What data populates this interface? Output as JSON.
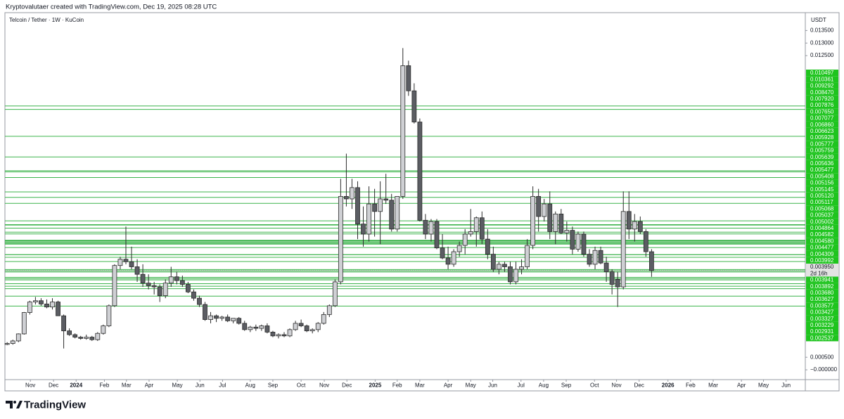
{
  "header": {
    "credit": "Kryptovalutaer created with TradingView.com, Dec 19, 2025 08:28 UTC"
  },
  "chart_data": {
    "type": "candlestick",
    "title": "Telcoin / Tether · 1W · KuCoin",
    "y_unit": "USDT",
    "open": [
      0.00101,
      0.00105,
      0.00115,
      0.00143,
      0.00228,
      0.0027,
      0.00275,
      0.00262,
      0.0025,
      0.0027,
      0.00215,
      0.00155,
      0.0014,
      0.0013,
      0.00125,
      0.0013,
      0.0012,
      0.00145,
      0.00175,
      0.00255,
      0.00415,
      0.0044,
      0.0043,
      0.0041,
      0.0038,
      0.00345,
      0.00335,
      0.0033,
      0.00295,
      0.00345,
      0.0037,
      0.00355,
      0.0034,
      0.0031,
      0.00285,
      0.0026,
      0.002,
      0.00215,
      0.00205,
      0.0021,
      0.00195,
      0.00205,
      0.00185,
      0.0016,
      0.0017,
      0.00165,
      0.00175,
      0.0015,
      0.00135,
      0.0014,
      0.00135,
      0.0016,
      0.00185,
      0.00175,
      0.00155,
      0.0016,
      0.00185,
      0.0022,
      0.00255,
      0.0035,
      0.0069,
      0.0068,
      0.00725,
      0.0058,
      0.0054,
      0.0066,
      0.0063,
      0.0068,
      0.00675,
      0.0056,
      0.0069,
      0.0121,
      0.0111,
      0.00986,
      0.00595,
      0.0054,
      0.0059,
      0.00485,
      0.00445,
      0.0042,
      0.0047,
      0.00495,
      0.0054,
      0.0055,
      0.00605,
      0.0052,
      0.0046,
      0.004,
      0.0042,
      0.0041,
      0.0035,
      0.004,
      0.0041,
      0.00495,
      0.0069,
      0.0061,
      0.0066,
      0.0055,
      0.0062,
      0.00545,
      0.00555,
      0.0048,
      0.0054,
      0.0046,
      0.0042,
      0.00475,
      0.00425,
      0.0039,
      0.0036,
      0.0033,
      0.0063,
      0.0056,
      0.0059,
      0.0055,
      0.0047
    ],
    "high": [
      0.0011,
      0.0012,
      0.00145,
      0.0023,
      0.00275,
      0.0029,
      0.00285,
      0.0028,
      0.00285,
      0.00275,
      0.0022,
      0.00165,
      0.00145,
      0.00135,
      0.0014,
      0.00135,
      0.0015,
      0.0018,
      0.0026,
      0.0042,
      0.0045,
      0.0057,
      0.0049,
      0.0044,
      0.0042,
      0.0038,
      0.0035,
      0.0034,
      0.0036,
      0.0041,
      0.0039,
      0.00375,
      0.0035,
      0.0032,
      0.00295,
      0.0027,
      0.0023,
      0.0022,
      0.00215,
      0.0022,
      0.00205,
      0.0021,
      0.00195,
      0.00175,
      0.0018,
      0.0018,
      0.00185,
      0.00155,
      0.00145,
      0.0015,
      0.00165,
      0.00195,
      0.002,
      0.0018,
      0.00165,
      0.0019,
      0.0023,
      0.0026,
      0.0036,
      0.0076,
      0.0086,
      0.0076,
      0.0075,
      0.0065,
      0.0073,
      0.0072,
      0.0075,
      0.0078,
      0.007,
      0.0069,
      0.0128,
      0.0123,
      0.0114,
      0.01,
      0.0062,
      0.006,
      0.006,
      0.0054,
      0.0049,
      0.0048,
      0.0051,
      0.0056,
      0.0064,
      0.0061,
      0.0063,
      0.0056,
      0.0049,
      0.0043,
      0.0043,
      0.0043,
      0.0043,
      0.0044,
      0.0052,
      0.0073,
      0.0072,
      0.0068,
      0.0071,
      0.0063,
      0.0064,
      0.0059,
      0.0057,
      0.0055,
      0.0055,
      0.0048,
      0.0049,
      0.0049,
      0.0045,
      0.004,
      0.0039,
      0.0071,
      0.0071,
      0.0062,
      0.0061,
      0.0056,
      0.0048
    ],
    "low": [
      0.00098,
      0.001,
      0.0011,
      0.0014,
      0.0022,
      0.0026,
      0.00255,
      0.00245,
      0.0024,
      0.00215,
      0.00085,
      0.00135,
      0.00125,
      0.0012,
      0.0012,
      0.00115,
      0.00115,
      0.0014,
      0.0017,
      0.0025,
      0.004,
      0.0042,
      0.004,
      0.0035,
      0.0033,
      0.0032,
      0.003,
      0.0027,
      0.00285,
      0.0033,
      0.0034,
      0.0033,
      0.00305,
      0.00275,
      0.0025,
      0.00195,
      0.00185,
      0.0019,
      0.00195,
      0.0019,
      0.00185,
      0.0018,
      0.00155,
      0.0015,
      0.00155,
      0.00155,
      0.00145,
      0.0013,
      0.00125,
      0.0013,
      0.0013,
      0.00155,
      0.0017,
      0.0015,
      0.00145,
      0.0015,
      0.0018,
      0.0021,
      0.0025,
      0.0034,
      0.0065,
      0.0064,
      0.0052,
      0.0049,
      0.0051,
      0.0053,
      0.005,
      0.0066,
      0.0055,
      0.0055,
      0.0068,
      0.0109,
      0.0098,
      0.0059,
      0.0052,
      0.0051,
      0.0048,
      0.0044,
      0.004,
      0.0041,
      0.0045,
      0.0046,
      0.0053,
      0.0049,
      0.005,
      0.0044,
      0.0039,
      0.0038,
      0.0039,
      0.0034,
      0.0034,
      0.0038,
      0.004,
      0.0048,
      0.0055,
      0.0059,
      0.0052,
      0.005,
      0.0054,
      0.0051,
      0.0046,
      0.0047,
      0.0045,
      0.0041,
      0.004,
      0.0042,
      0.0035,
      0.003,
      0.0025,
      0.0032,
      0.0052,
      0.0051,
      0.0054,
      0.0045,
      0.0037
    ],
    "close": [
      0.00105,
      0.00115,
      0.00143,
      0.00228,
      0.0027,
      0.00275,
      0.00262,
      0.0025,
      0.0027,
      0.00215,
      0.00155,
      0.0014,
      0.0013,
      0.00125,
      0.0013,
      0.0012,
      0.00145,
      0.00175,
      0.00255,
      0.00415,
      0.0044,
      0.0043,
      0.0041,
      0.0038,
      0.00345,
      0.00335,
      0.0033,
      0.00295,
      0.00345,
      0.0037,
      0.00355,
      0.0034,
      0.0031,
      0.00285,
      0.0026,
      0.002,
      0.00215,
      0.00205,
      0.0021,
      0.00195,
      0.00205,
      0.00185,
      0.0016,
      0.0017,
      0.00165,
      0.00175,
      0.0015,
      0.00135,
      0.0014,
      0.00135,
      0.0016,
      0.00185,
      0.00175,
      0.00155,
      0.0016,
      0.00185,
      0.0022,
      0.00255,
      0.0035,
      0.0069,
      0.0068,
      0.00725,
      0.0058,
      0.0054,
      0.0066,
      0.0063,
      0.0068,
      0.00675,
      0.0056,
      0.0069,
      0.0121,
      0.0111,
      0.00986,
      0.00595,
      0.0054,
      0.0059,
      0.00485,
      0.00445,
      0.0042,
      0.0047,
      0.00495,
      0.0054,
      0.0055,
      0.00605,
      0.0052,
      0.0046,
      0.004,
      0.0042,
      0.0041,
      0.0035,
      0.004,
      0.0041,
      0.00495,
      0.0069,
      0.0061,
      0.0066,
      0.0055,
      0.0062,
      0.00545,
      0.00555,
      0.0048,
      0.0054,
      0.0046,
      0.0042,
      0.00475,
      0.00425,
      0.0039,
      0.0034,
      0.0033,
      0.0063,
      0.0056,
      0.0059,
      0.0055,
      0.0047,
      0.00395
    ],
    "colors": {
      "up": "#cfd0d4",
      "down": "#5b5d63",
      "border": "#2b2b2b",
      "level": "#3cb44b",
      "level_label": "#1ec41e",
      "price_label": "#e3e3e3"
    },
    "xlim": [
      -0.4,
      141.2
    ],
    "xticks": [
      {
        "value": 4.1,
        "label": "Nov"
      },
      {
        "value": 8.2,
        "label": "Dec"
      },
      {
        "value": 12.2,
        "label": "2024"
      },
      {
        "value": 17.2,
        "label": "Feb"
      },
      {
        "value": 21.1,
        "label": "Mar"
      },
      {
        "value": 25.1,
        "label": "Apr"
      },
      {
        "value": 30.1,
        "label": "May"
      },
      {
        "value": 34.1,
        "label": "Jun"
      },
      {
        "value": 38.1,
        "label": "Jul"
      },
      {
        "value": 43,
        "label": "Aug"
      },
      {
        "value": 47,
        "label": "Sep"
      },
      {
        "value": 52,
        "label": "Oct"
      },
      {
        "value": 56.1,
        "label": "Nov"
      },
      {
        "value": 60.1,
        "label": "Dec"
      },
      {
        "value": 65.1,
        "label": "2025"
      },
      {
        "value": 69,
        "label": "Feb"
      },
      {
        "value": 73,
        "label": "Mar"
      },
      {
        "value": 78,
        "label": "Apr"
      },
      {
        "value": 82,
        "label": "May"
      },
      {
        "value": 85.9,
        "label": "Jun"
      },
      {
        "value": 90.9,
        "label": "Jul"
      },
      {
        "value": 94.9,
        "label": "Aug"
      },
      {
        "value": 98.9,
        "label": "Sep"
      },
      {
        "value": 103.9,
        "label": "Oct"
      },
      {
        "value": 107.8,
        "label": "Nov"
      },
      {
        "value": 111.8,
        "label": "Dec"
      },
      {
        "value": 116.9,
        "label": "2026"
      },
      {
        "value": 120.9,
        "label": "Feb"
      },
      {
        "value": 124.9,
        "label": "Mar"
      },
      {
        "value": 129.9,
        "label": "Apr"
      },
      {
        "value": 133.8,
        "label": "May"
      },
      {
        "value": 137.8,
        "label": "Jun"
      }
    ],
    "ylim": [
      -0.00039,
      0.01421
    ],
    "yticks": [
      {
        "value": 0.0135,
        "label": "0.013500"
      },
      {
        "value": 0.013,
        "label": "0.013000"
      },
      {
        "value": 0.0125,
        "label": "0.012500"
      },
      {
        "value": 0.0005,
        "label": "0.000500"
      },
      {
        "value": 0,
        "label": "−0.000000"
      }
    ],
    "levels": [
      {
        "value": 0.010497,
        "label": "0.010497"
      },
      {
        "value": 0.010361,
        "label": "0.010361"
      },
      {
        "value": 0.009292,
        "label": "0.009292"
      },
      {
        "value": 0.00847,
        "label": "0.008470"
      },
      {
        "value": 0.00792,
        "label": "0.007920"
      },
      {
        "value": 0.007876,
        "label": "0.007876"
      },
      {
        "value": 0.00765,
        "label": "0.007650"
      },
      {
        "value": 0.007077,
        "label": "0.007077"
      },
      {
        "value": 0.00686,
        "label": "0.006860"
      },
      {
        "value": 0.006623,
        "label": "0.006623"
      },
      {
        "value": 0.005928,
        "label": "0.005928"
      },
      {
        "value": 0.005777,
        "label": "0.005777"
      },
      {
        "value": 0.005759,
        "label": "0.005759"
      },
      {
        "value": 0.005639,
        "label": "0.005639"
      },
      {
        "value": 0.005636,
        "label": "0.005636"
      },
      {
        "value": 0.005477,
        "label": "0.005477"
      },
      {
        "value": 0.005408,
        "label": "0.005408"
      },
      {
        "value": 0.005156,
        "label": "0.005156"
      },
      {
        "value": 0.005145,
        "label": "0.005145"
      },
      {
        "value": 0.00512,
        "label": "0.005120"
      },
      {
        "value": 0.005117,
        "label": "0.005117"
      },
      {
        "value": 0.005068,
        "label": "0.005068"
      },
      {
        "value": 0.005037,
        "label": "0.005037"
      },
      {
        "value": 0.005002,
        "label": "0.005002"
      },
      {
        "value": 0.004864,
        "label": "0.004864"
      },
      {
        "value": 0.004582,
        "label": "0.004582"
      },
      {
        "value": 0.00458,
        "label": "0.004580"
      },
      {
        "value": 0.004477,
        "label": "0.004477"
      },
      {
        "value": 0.004309,
        "label": "0.004309"
      },
      {
        "value": 0.003992,
        "label": "0.003992"
      },
      {
        "value": 0.003941,
        "label": "0.003941"
      },
      {
        "value": 0.003892,
        "label": "0.003892"
      },
      {
        "value": 0.00368,
        "label": "0.003680"
      },
      {
        "value": 0.003627,
        "label": "0.003627"
      },
      {
        "value": 0.003577,
        "label": "0.003577"
      },
      {
        "value": 0.003427,
        "label": "0.003427"
      },
      {
        "value": 0.003327,
        "label": "0.003327"
      },
      {
        "value": 0.003229,
        "label": "0.003229"
      },
      {
        "value": 0.002931,
        "label": "0.002931"
      },
      {
        "value": 0.002537,
        "label": "0.002537"
      }
    ],
    "last_price": {
      "value": 0.00395,
      "label": "0.003950"
    },
    "countdown": "2d 16h"
  },
  "footer": {
    "brand": "TradingView"
  }
}
